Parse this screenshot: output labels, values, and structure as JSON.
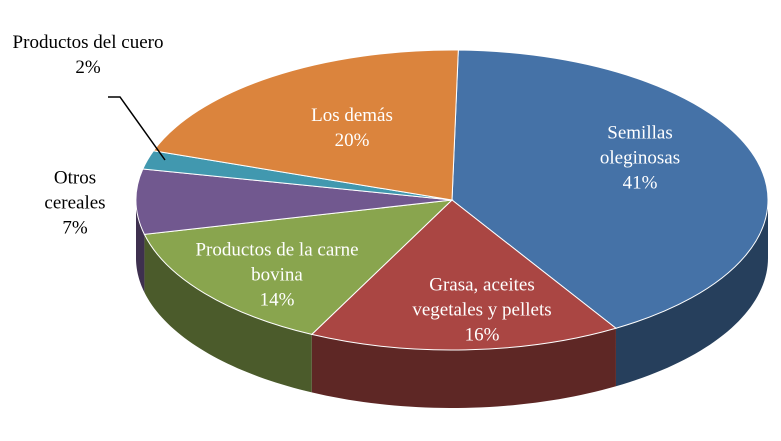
{
  "chart_data": {
    "type": "pie",
    "categories": [
      "Semillas oleginosas",
      "Grasa, aceites vegetales y pellets",
      "Productos de la carne bovina",
      "Otros cereales",
      "Productos del cuero",
      "Los demás"
    ],
    "values": [
      41,
      16,
      14,
      7,
      2,
      20
    ],
    "value_labels": [
      "41%",
      "16%",
      "14%",
      "7%",
      "2%",
      "20%"
    ],
    "colors": [
      "#4572a7",
      "#aa4643",
      "#89a54e",
      "#71588f",
      "#4198af",
      "#db843d"
    ]
  }
}
